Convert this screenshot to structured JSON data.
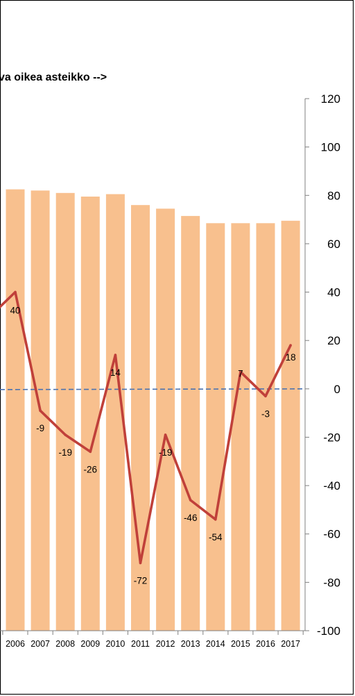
{
  "chart_data": {
    "type": "bar+line",
    "annotation": "va oikea asteikko -->",
    "categories": [
      "2006",
      "2007",
      "2008",
      "2009",
      "2010",
      "2011",
      "2012",
      "2013",
      "2014",
      "2015",
      "2016",
      "2017"
    ],
    "series": [
      {
        "type": "bar",
        "values": [
          82.5,
          82,
          81,
          79.5,
          80.5,
          76,
          74.5,
          71.5,
          68.5,
          68.5,
          68.5,
          69.5
        ],
        "color": "#f8c08e"
      },
      {
        "type": "line",
        "values": [
          40,
          -9,
          -19,
          -26,
          14,
          -72,
          -19,
          -46,
          -54,
          7,
          -3,
          18
        ],
        "labels": [
          "40",
          "-9",
          "-19",
          "-26",
          "14",
          "-72",
          "-19",
          "-46",
          "-54",
          "7",
          "-3",
          "18"
        ],
        "color": "#c0403a"
      }
    ],
    "line_lead_in_value": 30,
    "y_axis": {
      "position": "right",
      "ylim": [
        -100,
        120
      ],
      "ticks": [
        120,
        100,
        80,
        60,
        40,
        20,
        0,
        -20,
        -40,
        -60,
        -80,
        -100
      ]
    },
    "zero_line": {
      "style": "dashed",
      "color": "#4a72b0"
    }
  }
}
